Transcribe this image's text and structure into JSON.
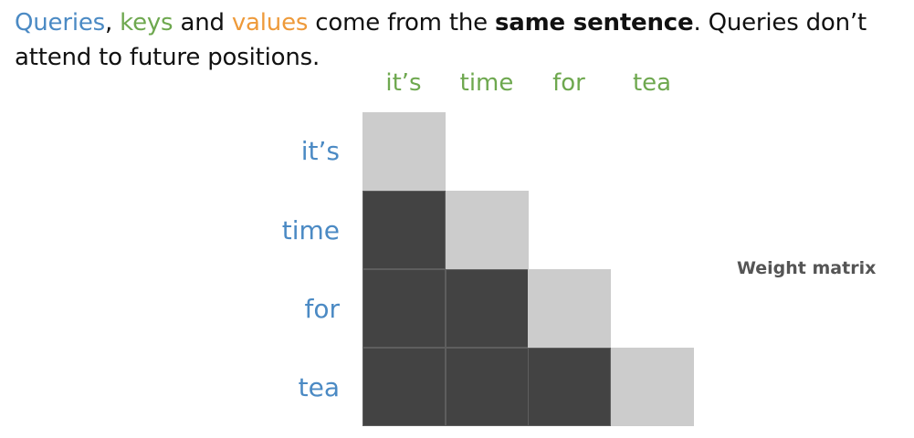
{
  "caption": {
    "queries": "Queries",
    "sep1": ", ",
    "keys": "keys",
    "and": " and ",
    "values": "values",
    "middle": " come from the ",
    "bold": "same sentence",
    "end": ". Queries don’t attend to future positions."
  },
  "key_tokens": [
    "it’s",
    "time",
    "for",
    "tea"
  ],
  "query_tokens": [
    "it’s",
    "time",
    "for",
    "tea"
  ],
  "matrix_label": "Weight matrix",
  "colors": {
    "queries": "#4b8ac4",
    "keys": "#6ea84f",
    "values": "#ee9a3a",
    "diagonal_cell": "#cccccc",
    "past_cell": "#434343"
  },
  "mask": [
    [
      "diag",
      "",
      "",
      ""
    ],
    [
      "past",
      "diag",
      "",
      ""
    ],
    [
      "past",
      "past",
      "diag",
      ""
    ],
    [
      "past",
      "past",
      "past",
      "diag"
    ]
  ]
}
